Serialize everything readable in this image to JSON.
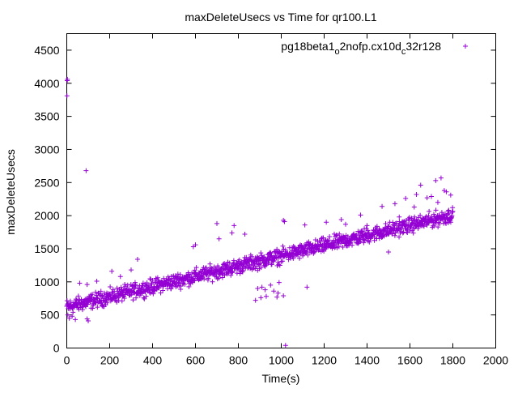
{
  "chart_data": {
    "type": "scatter",
    "title": "maxDeleteUsecs vs Time for qr100.L1",
    "xlabel": "Time(s)",
    "ylabel": "maxDeleteUsecs",
    "xlim": [
      0,
      2000
    ],
    "ylim": [
      0,
      4750
    ],
    "xticks": [
      "0",
      "200",
      "400",
      "600",
      "800",
      "1000",
      "1200",
      "1400",
      "1600",
      "1800",
      "2000"
    ],
    "yticks": [
      "0",
      "500",
      "1000",
      "1500",
      "2000",
      "2500",
      "3000",
      "3500",
      "4000",
      "4500"
    ],
    "grid": false,
    "legend_position": "top-right",
    "series": [
      {
        "name_parts": [
          "pg18beta1",
          "o",
          "2nofp.cx10d",
          "c",
          "32r128"
        ],
        "color": "#9400d3",
        "marker": "plus",
        "trend": {
          "x_start": 0,
          "y_start": 620,
          "x_end": 1800,
          "y_end": 2010
        },
        "points": [
          [
            2,
            4040
          ],
          [
            3,
            4060
          ],
          [
            1,
            3810
          ],
          [
            90,
            2680
          ],
          [
            5,
            500
          ],
          [
            12,
            450
          ],
          [
            40,
            430
          ],
          [
            95,
            440
          ],
          [
            100,
            410
          ],
          [
            25,
            480
          ],
          [
            60,
            980
          ],
          [
            95,
            960
          ],
          [
            140,
            1010
          ],
          [
            210,
            1160
          ],
          [
            330,
            1340
          ],
          [
            250,
            1080
          ],
          [
            300,
            1180
          ],
          [
            600,
            1560
          ],
          [
            590,
            1530
          ],
          [
            700,
            1880
          ],
          [
            770,
            1740
          ],
          [
            780,
            1850
          ],
          [
            710,
            1650
          ],
          [
            830,
            1720
          ],
          [
            1010,
            1930
          ],
          [
            1015,
            1910
          ],
          [
            1110,
            1860
          ],
          [
            1210,
            1900
          ],
          [
            1280,
            1940
          ],
          [
            1370,
            2010
          ],
          [
            1300,
            1870
          ],
          [
            1500,
            1450
          ],
          [
            1120,
            920
          ],
          [
            1020,
            40
          ],
          [
            1400,
            1850
          ],
          [
            1550,
            1980
          ],
          [
            890,
            900
          ],
          [
            910,
            920
          ],
          [
            925,
            880
          ],
          [
            950,
            950
          ],
          [
            965,
            860
          ],
          [
            905,
            760
          ],
          [
            930,
            780
          ],
          [
            980,
            770
          ],
          [
            1010,
            790
          ],
          [
            990,
            990
          ],
          [
            985,
            830
          ],
          [
            880,
            720
          ],
          [
            1630,
            2320
          ],
          [
            1650,
            2460
          ],
          [
            1700,
            2290
          ],
          [
            1720,
            2530
          ],
          [
            1745,
            2570
          ],
          [
            1760,
            2380
          ],
          [
            1770,
            2360
          ],
          [
            1790,
            2310
          ],
          [
            1580,
            2260
          ],
          [
            1530,
            2180
          ],
          [
            1470,
            2140
          ],
          [
            1620,
            2130
          ],
          [
            1680,
            2270
          ],
          [
            1730,
            2200
          ]
        ]
      }
    ]
  }
}
